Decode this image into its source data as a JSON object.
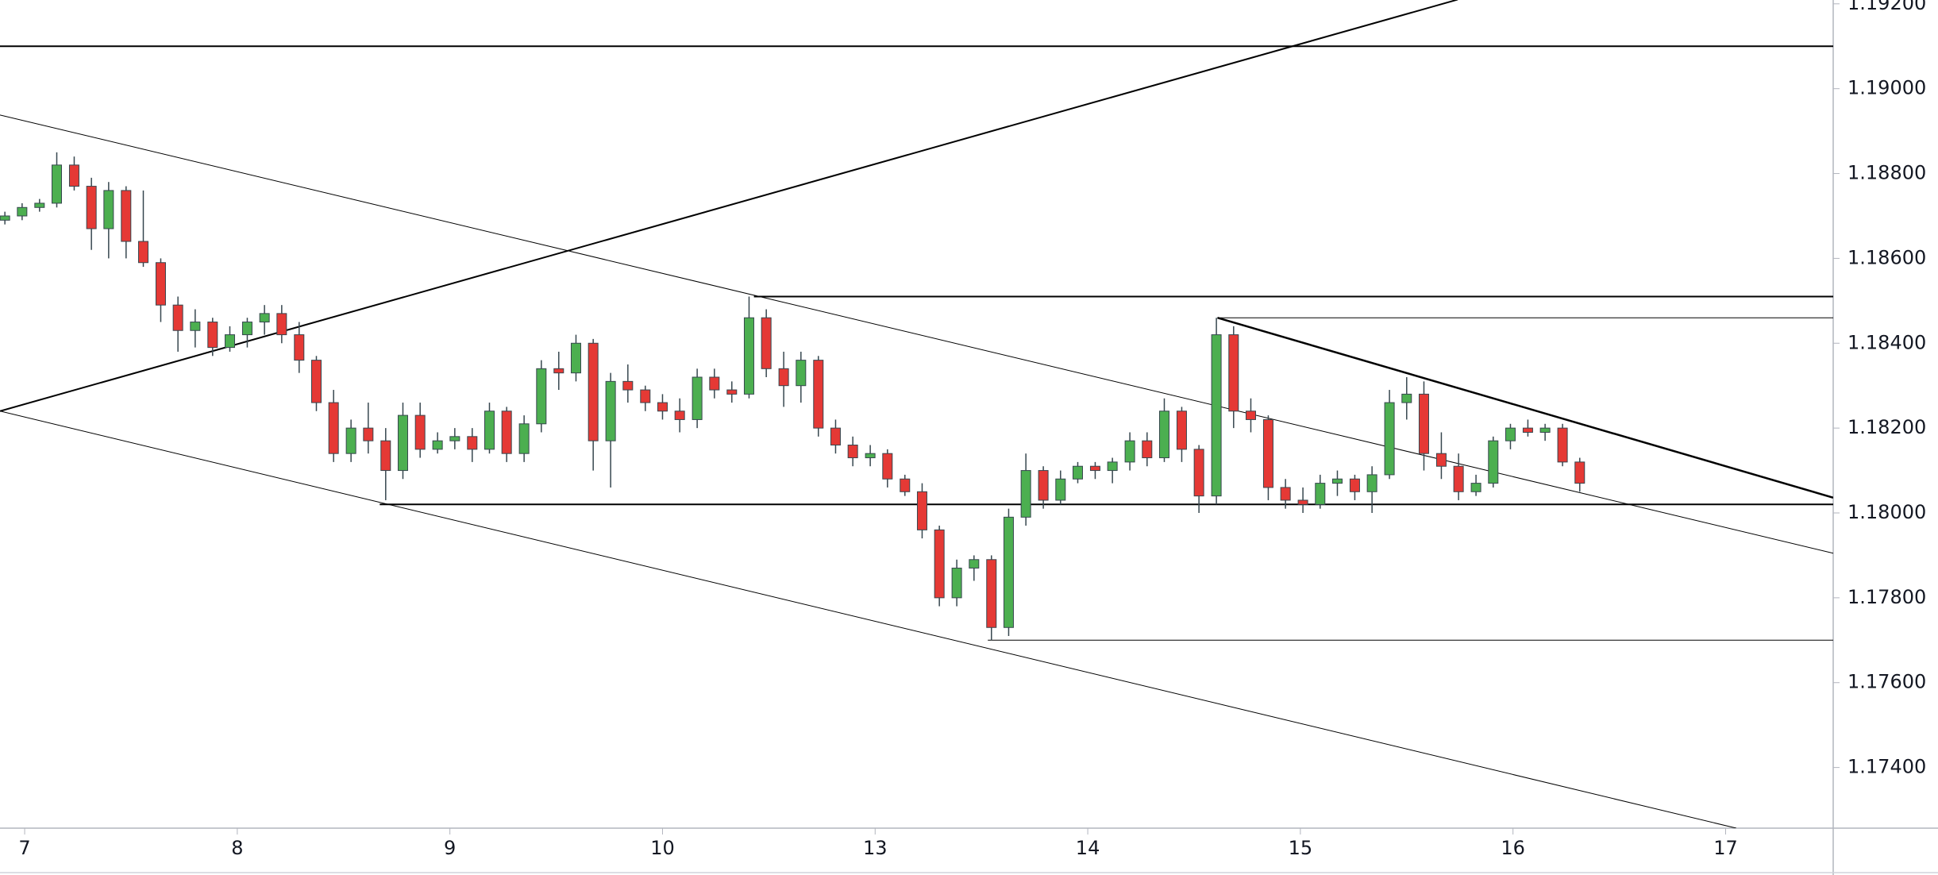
{
  "chart_data": {
    "type": "candlestick",
    "xlim": [
      -0.116,
      8.506
    ],
    "xticks": [
      {
        "value": 0,
        "label": "7"
      },
      {
        "value": 1,
        "label": "8"
      },
      {
        "value": 2,
        "label": "9"
      },
      {
        "value": 3,
        "label": "10"
      },
      {
        "value": 4,
        "label": "13"
      },
      {
        "value": 5,
        "label": "14"
      },
      {
        "value": 6,
        "label": "15"
      },
      {
        "value": 7,
        "label": "16"
      },
      {
        "value": 8,
        "label": "17"
      }
    ],
    "ylim": [
      1.17257,
      1.19209
    ],
    "yticks": [
      {
        "value": 1.174,
        "label": "1.17400"
      },
      {
        "value": 1.176,
        "label": "1.17600"
      },
      {
        "value": 1.178,
        "label": "1.17800"
      },
      {
        "value": 1.18,
        "label": "1.18000"
      },
      {
        "value": 1.182,
        "label": "1.18200"
      },
      {
        "value": 1.184,
        "label": "1.18400"
      },
      {
        "value": 1.186,
        "label": "1.18600"
      },
      {
        "value": 1.188,
        "label": "1.18800"
      },
      {
        "value": 1.19,
        "label": "1.19000"
      },
      {
        "value": 1.192,
        "label": "1.19200"
      }
    ],
    "grid": false,
    "up_color": "#4caf50",
    "down_color": "#e53935",
    "wick_color": "#37474f",
    "x": [
      -0.093,
      -0.012,
      0.07,
      0.151,
      0.233,
      0.314,
      0.395,
      0.477,
      0.558,
      0.64,
      0.721,
      0.802,
      0.884,
      0.965,
      1.047,
      1.128,
      1.209,
      1.291,
      1.372,
      1.453,
      1.535,
      1.616,
      1.698,
      1.779,
      1.86,
      1.942,
      2.023,
      2.105,
      2.186,
      2.267,
      2.349,
      2.43,
      2.512,
      2.593,
      2.674,
      2.756,
      2.837,
      2.919,
      3.0,
      3.081,
      3.163,
      3.244,
      3.326,
      3.407,
      3.488,
      3.57,
      3.651,
      3.733,
      3.814,
      3.895,
      3.977,
      4.058,
      4.14,
      4.221,
      4.302,
      4.384,
      4.465,
      4.547,
      4.628,
      4.709,
      4.791,
      4.872,
      4.953,
      5.035,
      5.116,
      5.198,
      5.279,
      5.36,
      5.442,
      5.523,
      5.605,
      5.686,
      5.767,
      5.849,
      5.93,
      6.012,
      6.093,
      6.174,
      6.256,
      6.337,
      6.419,
      6.5,
      6.581,
      6.663,
      6.744,
      6.826,
      6.907,
      6.988,
      7.07,
      7.151,
      7.233,
      7.314
    ],
    "open": [
      1.1869,
      1.187,
      1.1872,
      1.1873,
      1.1882,
      1.1877,
      1.1867,
      1.1876,
      1.1864,
      1.1859,
      1.1849,
      1.1843,
      1.1845,
      1.1839,
      1.1842,
      1.1845,
      1.1847,
      1.1842,
      1.1836,
      1.1826,
      1.1814,
      1.182,
      1.1817,
      1.181,
      1.1823,
      1.1815,
      1.1817,
      1.1818,
      1.1815,
      1.1824,
      1.1814,
      1.1821,
      1.1834,
      1.1833,
      1.184,
      1.1817,
      1.1831,
      1.1829,
      1.1826,
      1.1824,
      1.1822,
      1.1832,
      1.1829,
      1.1828,
      1.1846,
      1.1834,
      1.183,
      1.1836,
      1.182,
      1.1816,
      1.1813,
      1.1814,
      1.1808,
      1.1805,
      1.1796,
      1.178,
      1.1787,
      1.1789,
      1.1773,
      1.1799,
      1.181,
      1.1803,
      1.1808,
      1.1811,
      1.181,
      1.1812,
      1.1817,
      1.1813,
      1.1824,
      1.1815,
      1.1804,
      1.1842,
      1.1824,
      1.1822,
      1.1806,
      1.1803,
      1.1802,
      1.1807,
      1.1808,
      1.1805,
      1.1809,
      1.1826,
      1.1828,
      1.1814,
      1.1811,
      1.1805,
      1.1807,
      1.1817,
      1.182,
      1.1819,
      1.182,
      1.1812
    ],
    "high": [
      1.1871,
      1.1873,
      1.1874,
      1.1885,
      1.1884,
      1.1879,
      1.1878,
      1.1877,
      1.1876,
      1.186,
      1.1851,
      1.1848,
      1.1846,
      1.1844,
      1.1846,
      1.1849,
      1.1849,
      1.1845,
      1.1837,
      1.1829,
      1.1822,
      1.1826,
      1.182,
      1.1826,
      1.1826,
      1.1819,
      1.182,
      1.182,
      1.1826,
      1.1825,
      1.1823,
      1.1836,
      1.1838,
      1.1842,
      1.1841,
      1.1833,
      1.1835,
      1.183,
      1.1828,
      1.1827,
      1.1834,
      1.1834,
      1.1831,
      1.1851,
      1.1848,
      1.1838,
      1.1838,
      1.1837,
      1.1822,
      1.1818,
      1.1816,
      1.1815,
      1.1809,
      1.1807,
      1.1797,
      1.1789,
      1.179,
      1.179,
      1.1801,
      1.1814,
      1.1811,
      1.181,
      1.1812,
      1.1812,
      1.1813,
      1.1819,
      1.1819,
      1.1827,
      1.1825,
      1.1816,
      1.1846,
      1.1844,
      1.1827,
      1.1823,
      1.1808,
      1.1806,
      1.1809,
      1.181,
      1.1809,
      1.1811,
      1.1829,
      1.1832,
      1.1831,
      1.1819,
      1.1814,
      1.1809,
      1.1818,
      1.1821,
      1.1822,
      1.1821,
      1.1821,
      1.1813
    ],
    "low": [
      1.1868,
      1.1869,
      1.1871,
      1.1872,
      1.1876,
      1.1862,
      1.186,
      1.186,
      1.1858,
      1.1845,
      1.1838,
      1.1839,
      1.1837,
      1.1838,
      1.1839,
      1.1842,
      1.184,
      1.1833,
      1.1824,
      1.1812,
      1.1812,
      1.1814,
      1.1803,
      1.1808,
      1.1813,
      1.1814,
      1.1815,
      1.1812,
      1.1814,
      1.1812,
      1.1812,
      1.1819,
      1.1829,
      1.1831,
      1.181,
      1.1806,
      1.1826,
      1.1824,
      1.1822,
      1.1819,
      1.182,
      1.1827,
      1.1826,
      1.1827,
      1.1832,
      1.1825,
      1.1826,
      1.1818,
      1.1814,
      1.1811,
      1.1811,
      1.1806,
      1.1804,
      1.1794,
      1.1778,
      1.1778,
      1.1784,
      1.177,
      1.1771,
      1.1797,
      1.1801,
      1.1802,
      1.1807,
      1.1808,
      1.1807,
      1.181,
      1.1811,
      1.1812,
      1.1812,
      1.18,
      1.1802,
      1.182,
      1.1819,
      1.1803,
      1.1801,
      1.18,
      1.1801,
      1.1804,
      1.1803,
      1.18,
      1.1808,
      1.1822,
      1.181,
      1.1808,
      1.1803,
      1.1804,
      1.1806,
      1.1815,
      1.1818,
      1.1817,
      1.1811,
      1.1805
    ],
    "close": [
      1.187,
      1.1872,
      1.1873,
      1.1882,
      1.1877,
      1.1867,
      1.1876,
      1.1864,
      1.1859,
      1.1849,
      1.1843,
      1.1845,
      1.1839,
      1.1842,
      1.1845,
      1.1847,
      1.1842,
      1.1836,
      1.1826,
      1.1814,
      1.182,
      1.1817,
      1.181,
      1.1823,
      1.1815,
      1.1817,
      1.1818,
      1.1815,
      1.1824,
      1.1814,
      1.1821,
      1.1834,
      1.1833,
      1.184,
      1.1817,
      1.1831,
      1.1829,
      1.1826,
      1.1824,
      1.1822,
      1.1832,
      1.1829,
      1.1828,
      1.1846,
      1.1834,
      1.183,
      1.1836,
      1.182,
      1.1816,
      1.1813,
      1.1814,
      1.1808,
      1.1805,
      1.1796,
      1.178,
      1.1787,
      1.1789,
      1.1773,
      1.1799,
      1.181,
      1.1803,
      1.1808,
      1.1811,
      1.181,
      1.1812,
      1.1817,
      1.1813,
      1.1824,
      1.1815,
      1.1804,
      1.1842,
      1.1824,
      1.1822,
      1.1806,
      1.1803,
      1.1802,
      1.1807,
      1.1808,
      1.1805,
      1.1809,
      1.1826,
      1.1828,
      1.1814,
      1.1811,
      1.1805,
      1.1807,
      1.1817,
      1.182,
      1.1819,
      1.182,
      1.1812,
      1.1807
    ],
    "lines": [
      {
        "x": [
          -0.116,
          8.506
        ],
        "y": [
          1.191,
          1.191
        ],
        "width": 2
      },
      {
        "x": [
          3.43,
          8.506
        ],
        "y": [
          1.1851,
          1.1851
        ],
        "width": 2
      },
      {
        "x": [
          5.61,
          8.506
        ],
        "y": [
          1.1846,
          1.1846
        ],
        "width": 1
      },
      {
        "x": [
          1.67,
          8.506
        ],
        "y": [
          1.1802,
          1.1802
        ],
        "width": 2
      },
      {
        "x": [
          4.53,
          8.506
        ],
        "y": [
          1.177,
          1.177
        ],
        "width": 1
      },
      {
        "x": [
          -0.116,
          6.74
        ],
        "y": [
          1.1824,
          1.1921
        ],
        "width": 2
      },
      {
        "x": [
          -0.116,
          8.506
        ],
        "y": [
          1.18938,
          1.17905
        ],
        "width": 1
      },
      {
        "x": [
          -0.116,
          8.05
        ],
        "y": [
          1.1824,
          1.17257
        ],
        "width": 1
      },
      {
        "x": [
          5.61,
          8.506
        ],
        "y": [
          1.1846,
          1.18036
        ],
        "width": 2.5
      }
    ]
  }
}
